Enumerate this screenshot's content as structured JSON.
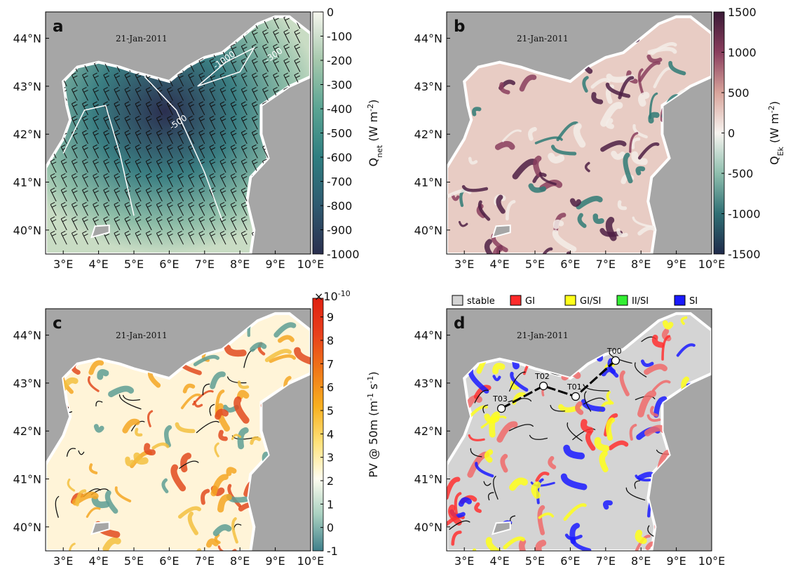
{
  "axes": {
    "xlim": [
      2.5,
      10
    ],
    "ylim": [
      39.5,
      44.55
    ],
    "xticks": [
      {
        "value": 3,
        "label": "3°E"
      },
      {
        "value": 4,
        "label": "4°E"
      },
      {
        "value": 5,
        "label": "5°E"
      },
      {
        "value": 6,
        "label": "6°E"
      },
      {
        "value": 7,
        "label": "7°E"
      },
      {
        "value": 8,
        "label": "8°E"
      },
      {
        "value": 9,
        "label": "9°E"
      },
      {
        "value": 10,
        "label": "10°E"
      }
    ],
    "yticks": [
      {
        "value": 40,
        "label": "40°N"
      },
      {
        "value": 41,
        "label": "41°N"
      },
      {
        "value": 42,
        "label": "42°N"
      },
      {
        "value": 43,
        "label": "43°N"
      },
      {
        "value": 44,
        "label": "44°N"
      }
    ]
  },
  "panels": [
    {
      "label": "a",
      "date": "21-Jan-2011",
      "colorbar": {
        "title_parts": [
          {
            "text": "Q"
          },
          {
            "text": "net",
            "shift": "sub"
          },
          {
            "text": " (W m"
          },
          {
            "text": "-2",
            "shift": "super"
          },
          {
            "text": ")"
          }
        ],
        "lim": [
          -1000,
          0
        ],
        "ticks": [
          0,
          -100,
          -200,
          -300,
          -400,
          -500,
          -600,
          -700,
          -800,
          -900,
          -1000
        ],
        "colors": [
          "#2a2f4e",
          "#2f5a70",
          "#2f7e80",
          "#5aa493",
          "#a6c8ad",
          "#f6f6ee"
        ]
      },
      "contour_labels": [
        "-1000",
        "-500",
        "-300"
      ]
    },
    {
      "label": "b",
      "date": "21-Jan-2011",
      "colorbar": {
        "title_parts": [
          {
            "text": "Q"
          },
          {
            "text": "Ek",
            "shift": "sub"
          },
          {
            "text": " (W m"
          },
          {
            "text": "-2",
            "shift": "super"
          },
          {
            "text": ")"
          }
        ],
        "lim": [
          -1500,
          1500
        ],
        "ticks": [
          1500,
          1000,
          500,
          0,
          -500,
          -1000,
          -1500
        ],
        "colors": [
          "#1f2a4a",
          "#2f6f74",
          "#8fbfae",
          "#f7f4f0",
          "#d8a49b",
          "#8a3e5e",
          "#3a1a36"
        ]
      }
    },
    {
      "label": "c",
      "date": "21-Jan-2011",
      "colorbar": {
        "title_parts": [
          {
            "text": "PV @ 50m (m"
          },
          {
            "text": "-1",
            "shift": "super"
          },
          {
            "text": " s"
          },
          {
            "text": "-1",
            "shift": "super"
          },
          {
            "text": ")"
          }
        ],
        "multiplier": "×10",
        "multiplier_exp": "-10",
        "lim": [
          -1,
          9.8
        ],
        "ticks": [
          9,
          8,
          7,
          6,
          5,
          4,
          3,
          2,
          1,
          0,
          -1
        ],
        "colors": [
          "#3f7f8a",
          "#a8d0c0",
          "#fffdf0",
          "#ffe27a",
          "#f8b020",
          "#f07818",
          "#e8401c",
          "#e02010"
        ]
      }
    },
    {
      "label": "d",
      "date": "21-Jan-2011",
      "legend": [
        {
          "name": "stable",
          "color": "#d3d3d3"
        },
        {
          "name": "GI",
          "color": "#ff2a2a"
        },
        {
          "name": "GI/SI",
          "color": "#ffff1a"
        },
        {
          "name": "II/SI",
          "color": "#33ee33"
        },
        {
          "name": "SI",
          "color": "#1a1aff"
        }
      ],
      "stations": [
        {
          "name": "T00",
          "lon": 7.28,
          "lat": 43.47
        },
        {
          "name": "T01",
          "lon": 6.15,
          "lat": 42.72
        },
        {
          "name": "T02",
          "lon": 5.24,
          "lat": 42.94
        },
        {
          "name": "T03",
          "lon": 4.05,
          "lat": 42.47
        }
      ]
    }
  ]
}
